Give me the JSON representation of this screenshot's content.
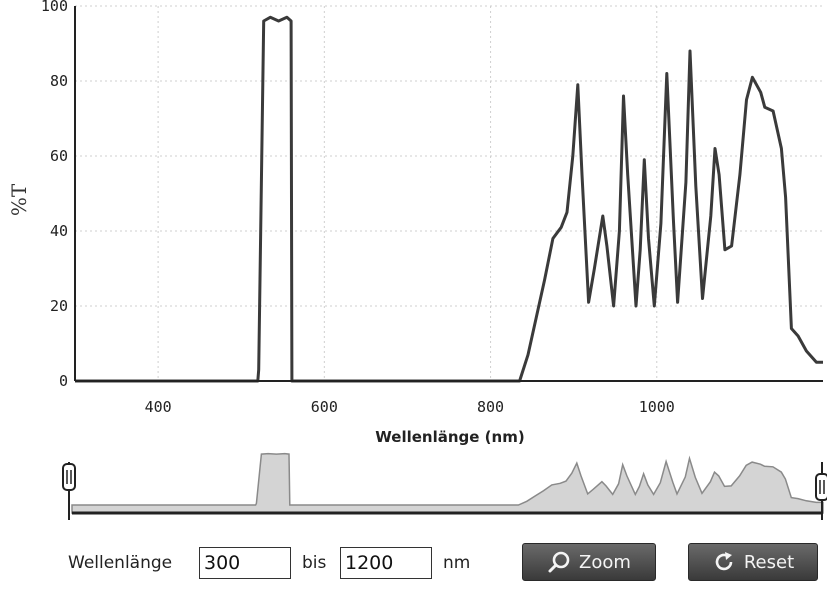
{
  "chart_data": {
    "type": "line",
    "ylabel": "%T",
    "xlabel": "Wellenlänge (nm)",
    "xlim": [
      300,
      1200
    ],
    "ylim": [
      0,
      100
    ],
    "x_ticks": [
      400,
      600,
      800,
      1000
    ],
    "y_ticks": [
      0,
      20,
      40,
      60,
      80,
      100
    ],
    "grid": true,
    "series": [
      {
        "x": [
          300,
          520,
          521,
          527,
          535,
          545,
          555,
          560,
          561,
          835,
          845,
          855,
          865,
          875,
          885,
          892,
          899,
          905,
          910,
          918,
          925,
          935,
          940,
          948,
          955,
          960,
          965,
          975,
          980,
          985,
          990,
          997,
          1005,
          1012,
          1020,
          1025,
          1035,
          1040,
          1047,
          1055,
          1065,
          1070,
          1075,
          1082,
          1090,
          1100,
          1108,
          1115,
          1125,
          1130,
          1140,
          1150,
          1155,
          1162,
          1170,
          1180,
          1192,
          1200
        ],
        "y": [
          0,
          0,
          3,
          96,
          97,
          96,
          97,
          96,
          0,
          0,
          7,
          17,
          27,
          38,
          41,
          45,
          60,
          79,
          55,
          21,
          30,
          44,
          36,
          20,
          40,
          76,
          55,
          20,
          35,
          59,
          38,
          20,
          42,
          82,
          43,
          21,
          53,
          88,
          52,
          22,
          44,
          62,
          55,
          35,
          36,
          55,
          75,
          81,
          77,
          73,
          72,
          62,
          49,
          14,
          12,
          8,
          5,
          5
        ]
      }
    ]
  },
  "overview": {
    "left_handle_label": "left range handle",
    "right_handle_label": "right range handle"
  },
  "controls": {
    "from_label": "Wellenlänge",
    "from_value": "300",
    "to_label": "bis",
    "to_value": "1200",
    "unit": "nm",
    "zoom_label": "Zoom",
    "reset_label": "Reset"
  }
}
